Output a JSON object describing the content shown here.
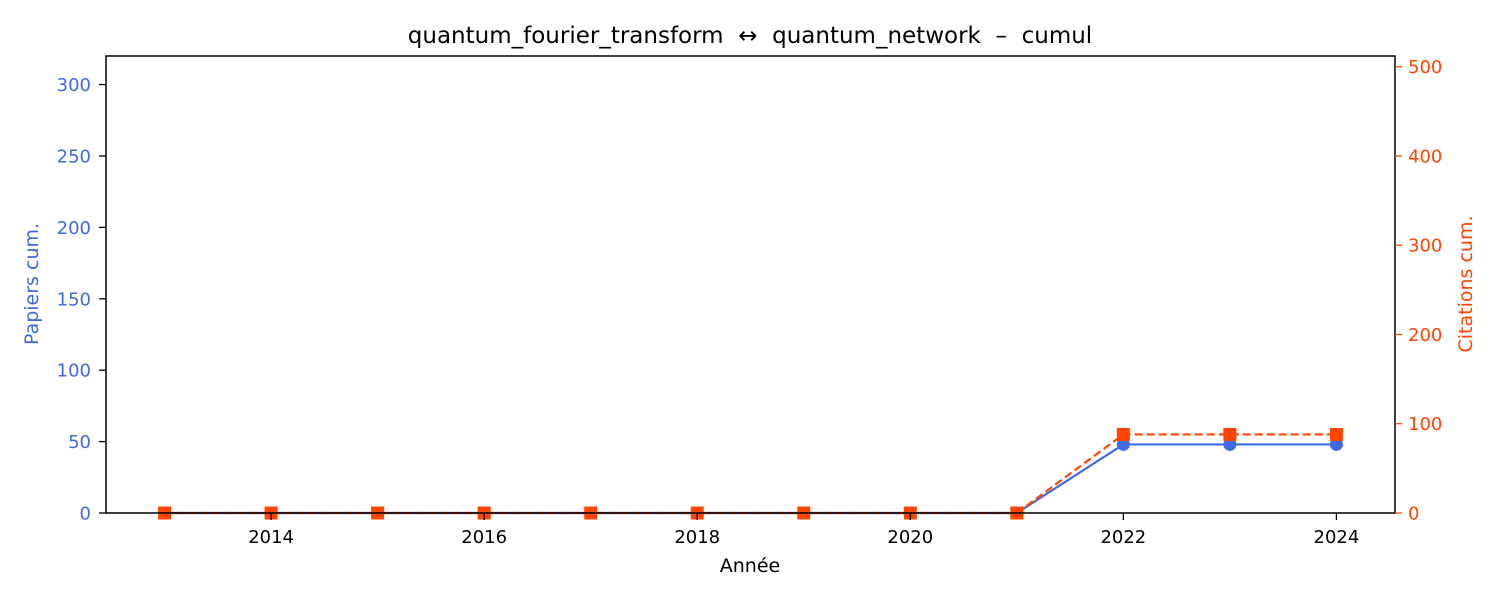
{
  "chart_data": {
    "type": "line",
    "title": "quantum_fourier_transform  ↔  quantum_network  –  cumul",
    "xlabel": "Année",
    "ylabel_left": "Papiers cum.",
    "ylabel_right": "Citations cum.",
    "x": [
      2013,
      2014,
      2015,
      2016,
      2017,
      2018,
      2019,
      2020,
      2021,
      2022,
      2023,
      2024
    ],
    "xlim": [
      2012.45,
      2024.55
    ],
    "xticks": [
      2014,
      2016,
      2018,
      2020,
      2022,
      2024
    ],
    "ylim_left": [
      0,
      320
    ],
    "yticks_left": [
      0,
      50,
      100,
      150,
      200,
      250,
      300
    ],
    "ylim_right": [
      0,
      512
    ],
    "yticks_right": [
      0,
      100,
      200,
      300,
      400,
      500
    ],
    "grid": false,
    "series": [
      {
        "axis": "left",
        "values": [
          0,
          0,
          0,
          0,
          0,
          0,
          0,
          0,
          0,
          48,
          48,
          48
        ],
        "color": "#4169e1",
        "marker": "circle",
        "linestyle": "solid"
      },
      {
        "axis": "right",
        "values": [
          0,
          0,
          0,
          0,
          0,
          0,
          0,
          0,
          0,
          88,
          88,
          88
        ],
        "color": "#ff4500",
        "marker": "square",
        "linestyle": "dashed"
      }
    ]
  }
}
